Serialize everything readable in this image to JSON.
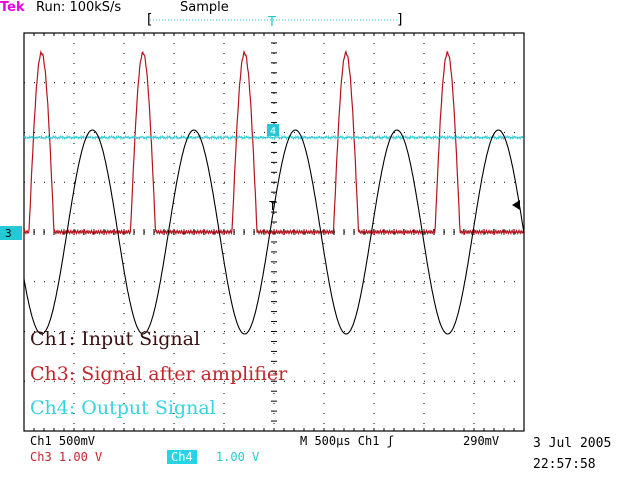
{
  "header": {
    "brand": "Tek",
    "run": "Run: 100kS/s",
    "mode": "Sample",
    "bracket_left": "[",
    "bracket_right": "]"
  },
  "markers": {
    "trigger_top": "T",
    "ch4_marker": "4",
    "ch13_marker": "3",
    "trigger_level": "T"
  },
  "legend": [
    {
      "text": "Ch1: Input Signal",
      "color": "#3a1010"
    },
    {
      "text": "Ch3: Signal after amplifier",
      "color": "#c0262c"
    },
    {
      "text": "Ch4: Output Signal",
      "color": "#38d2e0"
    }
  ],
  "status": {
    "ch1": "Ch1   500mV",
    "ch3": "Ch3   1.00 V",
    "ch4_label": "Ch4",
    "ch4_value": "1.00 V",
    "timebase": "M  500µs  Ch1  ʃ",
    "trigger_value": "290mV",
    "date": "3 Jul 2005",
    "time": "22:57:58"
  },
  "chart_data": {
    "type": "line",
    "x_unit": "divisions",
    "y_unit": "divisions",
    "xlim": [
      0,
      10
    ],
    "ylim": [
      -4,
      4
    ],
    "grid": true,
    "series": [
      {
        "name": "Ch1",
        "color": "#000000",
        "shape": "sine",
        "amplitude_div": 2.05,
        "period_div": 2.03,
        "phase_zero_div": 4.92,
        "offset_div": 0.0
      },
      {
        "name": "Ch3",
        "color": "#b4141e",
        "shape": "half-rectified",
        "peak_div": 3.6,
        "period_div": 2.03,
        "pulse_center_div": [
          0.35,
          2.38,
          4.41,
          6.44,
          8.47
        ],
        "pulse_width_div": 0.5,
        "baseline_div": 0.0
      },
      {
        "name": "Ch4",
        "color": "#26c8d6",
        "shape": "flat",
        "level_div": 1.9
      }
    ]
  }
}
